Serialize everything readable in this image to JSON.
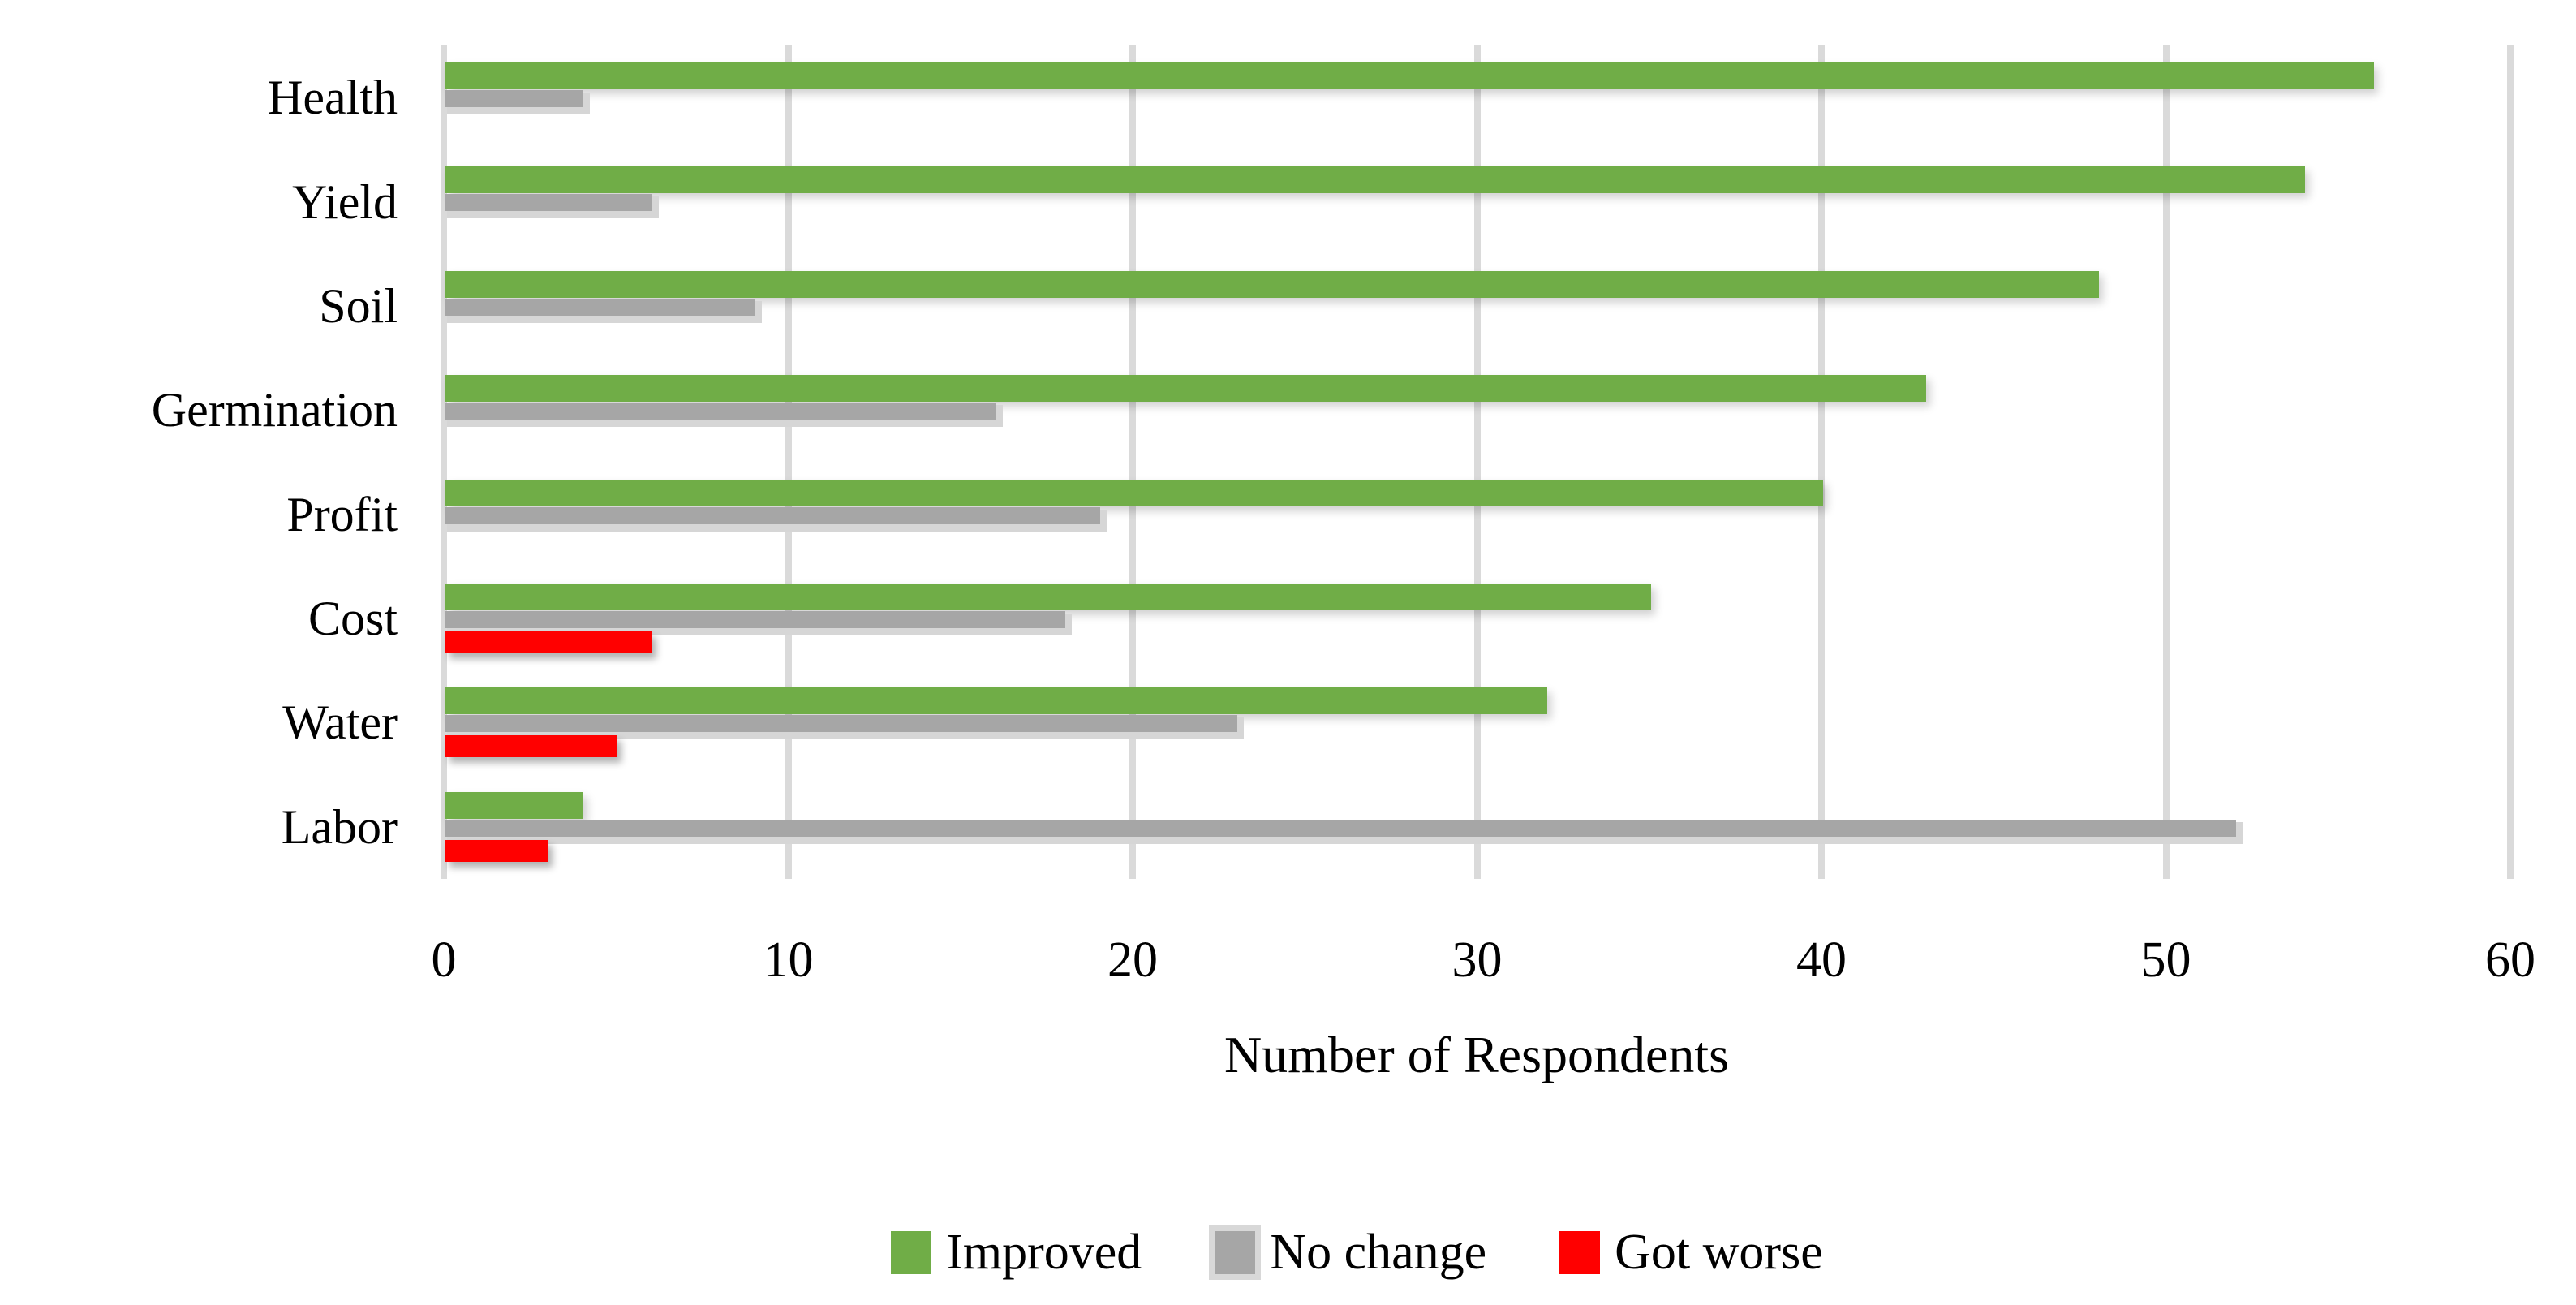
{
  "chart_data": {
    "type": "bar",
    "orientation": "horizontal",
    "title": "",
    "xlabel": "Number of Respondents",
    "ylabel": "",
    "xlim": [
      0,
      60
    ],
    "xticks": [
      0,
      10,
      20,
      30,
      40,
      50,
      60
    ],
    "grid": "vertical",
    "grid_color": "#DADADA",
    "legend_position": "bottom",
    "categories": [
      "Health",
      "Yield",
      "Soil",
      "Germination",
      "Profit",
      "Cost",
      "Water",
      "Labor"
    ],
    "series": [
      {
        "name": "Improved",
        "color": "#70AD47",
        "values": [
          56,
          54,
          48,
          43,
          40,
          35,
          32,
          4
        ]
      },
      {
        "name": "No change",
        "color": "#A6A6A6",
        "values": [
          4,
          6,
          9,
          16,
          19,
          18,
          23,
          52
        ]
      },
      {
        "name": "Got worse",
        "color": "#FF0000",
        "values": [
          0,
          0,
          0,
          0,
          0,
          6,
          5,
          3
        ]
      }
    ]
  }
}
